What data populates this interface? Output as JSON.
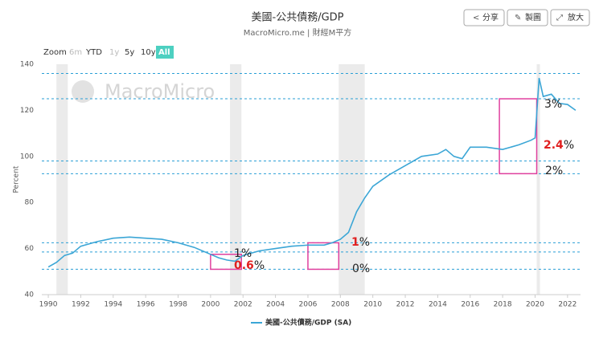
{
  "toolbar": {
    "buttons": [
      "分享",
      "製圖",
      "放大"
    ]
  },
  "zoom": {
    "label": "Zoom",
    "options": [
      "6m",
      "YTD",
      "1y",
      "5y",
      "10y",
      "All"
    ],
    "selected": "All",
    "disabled": [
      "6m",
      "1y"
    ]
  },
  "chart_data": {
    "type": "line",
    "title": "美國-公共債務/GDP",
    "subtitle": "MacroMicro.me | 財經M平方",
    "watermark": "MacroMicro",
    "y_label": "Percent",
    "xlim": [
      1989.6,
      2022.8
    ],
    "xticks": [
      1990,
      1992,
      1994,
      1996,
      1998,
      2000,
      2002,
      2004,
      2006,
      2008,
      2010,
      2012,
      2014,
      2016,
      2018,
      2020,
      2022
    ],
    "ylim": [
      40,
      140
    ],
    "yticks": [
      40,
      60,
      80,
      100,
      120,
      140
    ],
    "grid": false,
    "x": [
      1990,
      1990.5,
      1991,
      1991.5,
      1992,
      1993,
      1994,
      1995,
      1996,
      1997,
      1998,
      1999,
      2000,
      2000.5,
      2001,
      2001.5,
      2002,
      2003,
      2004,
      2005,
      2006,
      2007,
      2007.5,
      2008,
      2008.5,
      2009,
      2009.5,
      2010,
      2011,
      2012,
      2013,
      2014,
      2014.5,
      2015,
      2015.5,
      2016,
      2017,
      2018,
      2019,
      2019.75,
      2020,
      2020.25,
      2020.5,
      2021,
      2021.5,
      2022,
      2022.5
    ],
    "series": [
      {
        "name": "美國-公共債務/GDP (SA)",
        "color": "#3ba6d6",
        "values": [
          52,
          54,
          57,
          58,
          61,
          63,
          64.5,
          65,
          64.5,
          64,
          62.5,
          60.5,
          57.5,
          56,
          55,
          54.5,
          57,
          59,
          60,
          61,
          61.5,
          61.5,
          62.5,
          64,
          67,
          76,
          82,
          87,
          92,
          96,
          100,
          101,
          103,
          100,
          99,
          104,
          104,
          103,
          105,
          107,
          108,
          134,
          126,
          127,
          123,
          122.5,
          120
        ]
      }
    ],
    "recessions": [
      [
        1990.5,
        1991.2
      ],
      [
        2001.2,
        2001.9
      ],
      [
        2007.9,
        2009.5
      ],
      [
        2020.1,
        2020.3
      ]
    ],
    "reference_lines": [
      136,
      125,
      98,
      92.5,
      62.5,
      58.5,
      51
    ],
    "reference_color": "#2a9fd6",
    "boxes": [
      {
        "x": [
          2000,
          2001.9
        ],
        "y": [
          51,
          57.5
        ]
      },
      {
        "x": [
          2006,
          2007.9
        ],
        "y": [
          51,
          62.5
        ]
      },
      {
        "x": [
          2017.8,
          2020.1
        ],
        "y": [
          92.5,
          125
        ]
      }
    ],
    "box_color": "#e0409e",
    "annotations": [
      {
        "parts": [
          "3%"
        ],
        "colors": [
          "#222"
        ]
      },
      {
        "parts": [
          "2.4",
          "%"
        ],
        "colors": [
          "#e02020",
          "#222"
        ]
      },
      {
        "parts": [
          "2%"
        ],
        "colors": [
          "#222"
        ]
      },
      {
        "parts": [
          "1%"
        ],
        "colors": [
          "#222"
        ]
      },
      {
        "parts": [
          "0.6",
          "%"
        ],
        "colors": [
          "#e02020",
          "#222"
        ]
      },
      {
        "parts": [
          "1",
          "%"
        ],
        "colors": [
          "#e02020",
          "#222"
        ]
      },
      {
        "parts": [
          "0%"
        ],
        "colors": [
          "#222"
        ]
      }
    ]
  }
}
